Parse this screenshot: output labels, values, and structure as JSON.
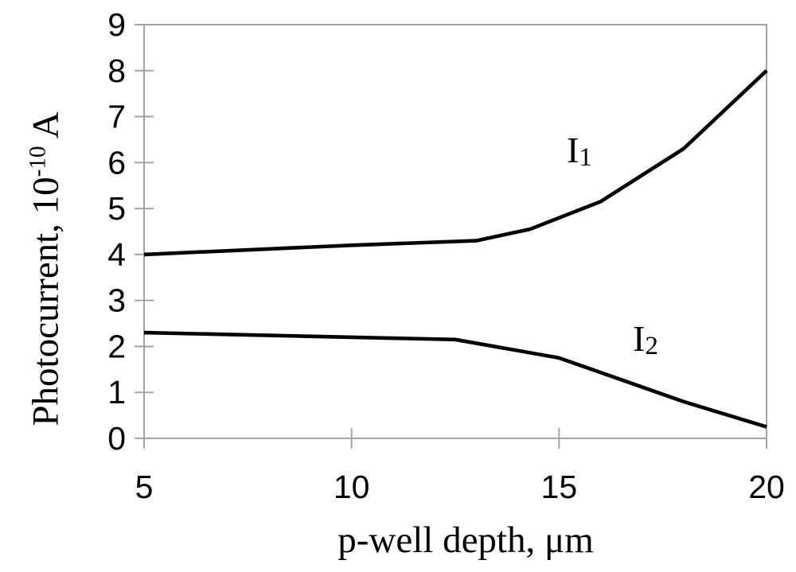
{
  "figure": {
    "background": "#ffffff",
    "axis_color": "#a3a3a3",
    "curve_color": "#000000",
    "text_color": "#000000"
  },
  "chart_data": {
    "type": "line",
    "title": "",
    "xlabel": "p-well depth, μm",
    "ylabel": "Photocurrent, 10^-10 A",
    "ylabel_parts": {
      "prefix": "Photocurrent, 10",
      "exponent": "-10",
      "suffix": " A"
    },
    "xlim": [
      5,
      20
    ],
    "ylim": [
      0,
      9
    ],
    "xticks": [
      5,
      10,
      15,
      20
    ],
    "yticks": [
      0,
      1,
      2,
      3,
      4,
      5,
      6,
      7,
      8,
      9
    ],
    "grid": false,
    "legend_position": "inline-curve-labels",
    "series": [
      {
        "name": "I1",
        "label_main": "I",
        "label_sub": "1",
        "x": [
          5,
          10,
          13,
          14.3,
          16,
          18,
          20
        ],
        "y": [
          4.0,
          4.2,
          4.3,
          4.55,
          5.15,
          6.3,
          8.0
        ]
      },
      {
        "name": "I2",
        "label_main": "I",
        "label_sub": "2",
        "x": [
          5,
          10,
          12.5,
          15,
          18,
          20
        ],
        "y": [
          2.3,
          2.2,
          2.15,
          1.75,
          0.8,
          0.25
        ]
      }
    ]
  }
}
